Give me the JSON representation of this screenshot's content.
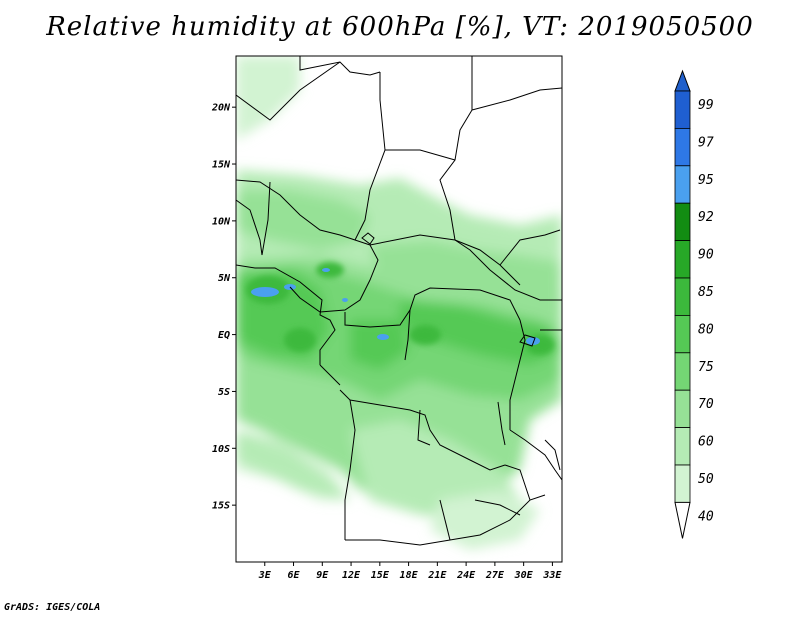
{
  "title": "Relative humidity at 600hPa [%], VT: 2019050500",
  "credit": "GrADS: IGES/COLA",
  "map": {
    "lat_labels": [
      "20N",
      "15N",
      "10N",
      "5N",
      "EQ",
      "5S",
      "10S",
      "15S"
    ],
    "lon_labels": [
      "3E",
      "6E",
      "9E",
      "12E",
      "15E",
      "18E",
      "21E",
      "24E",
      "27E",
      "30E",
      "33E"
    ],
    "lat_values": [
      20,
      15,
      10,
      5,
      0,
      -5,
      -10,
      -15
    ],
    "lon_values": [
      3,
      6,
      9,
      12,
      15,
      18,
      21,
      24,
      27,
      30,
      33
    ],
    "lon_range": [
      0,
      34
    ],
    "lat_range": [
      -20,
      24.5
    ]
  },
  "colorbar": {
    "levels": [
      "99",
      "97",
      "95",
      "92",
      "90",
      "85",
      "80",
      "75",
      "70",
      "60",
      "50",
      "40"
    ],
    "colors": [
      "#1f5fd1",
      "#2e78e6",
      "#4aa0ef",
      "#128c12",
      "#27a827",
      "#3cb93c",
      "#55c955",
      "#74d674",
      "#96e196",
      "#b5ebb5",
      "#d2f3d2",
      "#ecfaec"
    ],
    "top_arrow_color": "#2060cc",
    "bottom_arrow_color": "#ffffff"
  }
}
